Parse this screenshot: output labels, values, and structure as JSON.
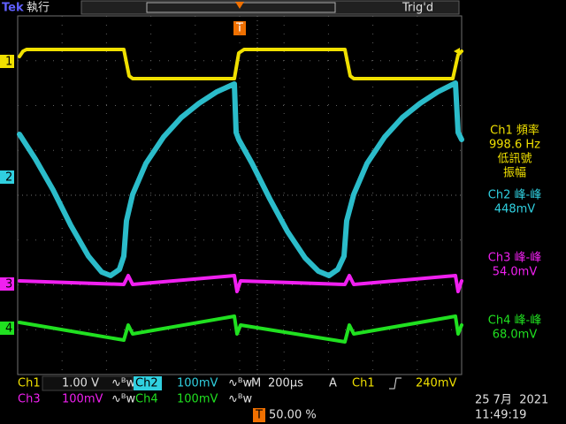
{
  "header": {
    "brand": "Tek",
    "status": "執行",
    "trigger_status": "Trig'd",
    "trigger_marker": "T"
  },
  "channel_markers": [
    "1",
    "2",
    "3",
    "4"
  ],
  "measurements": [
    {
      "label": "Ch1 頻率",
      "value": "998.6 Hz",
      "notes": [
        "低訊號",
        "振幅"
      ]
    },
    {
      "label": "Ch2 峰-峰",
      "value": "448mV"
    },
    {
      "label": "Ch3 峰-峰",
      "value": "54.0mV"
    },
    {
      "label": "Ch4 峰-峰",
      "value": "68.0mV"
    }
  ],
  "footer": {
    "ch1": {
      "label": "Ch1",
      "scale": "1.00 V"
    },
    "ch2": {
      "label": "Ch2",
      "scale": "100mV"
    },
    "ch3": {
      "label": "Ch3",
      "scale": "100mV"
    },
    "ch4": {
      "label": "Ch4",
      "scale": "100mV"
    },
    "timebase": {
      "label": "M",
      "value": "200µs"
    },
    "trigger": {
      "label": "A",
      "source": "Ch1",
      "level": "240mV"
    },
    "trigger_position": {
      "label": "T",
      "value": "50.00 %"
    },
    "date": "25 7月  2021",
    "time": "11:49:19"
  }
}
